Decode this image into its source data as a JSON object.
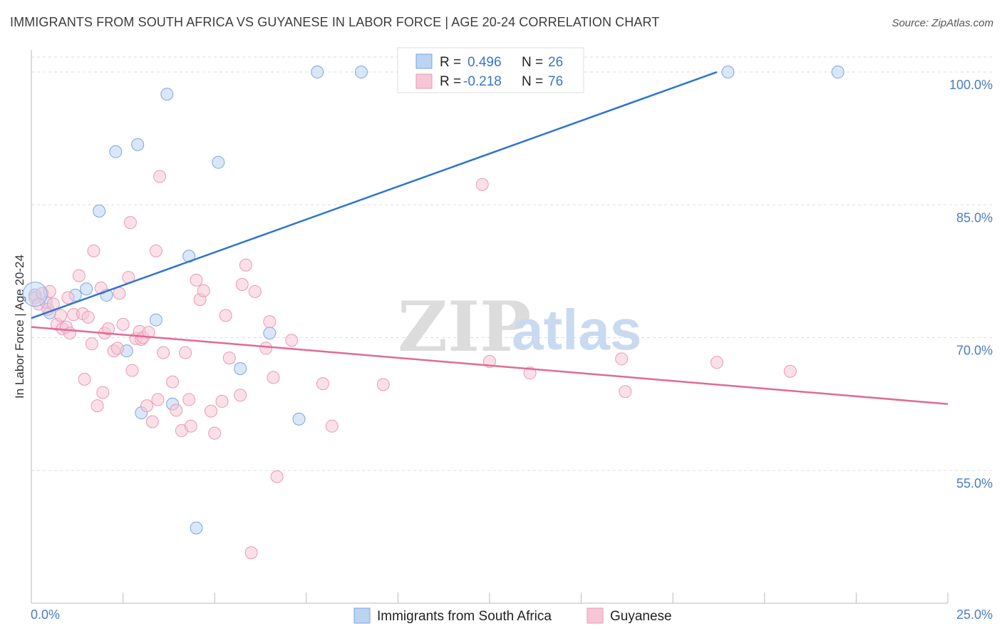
{
  "title": "IMMIGRANTS FROM SOUTH AFRICA VS GUYANESE IN LABOR FORCE | AGE 20-24 CORRELATION CHART",
  "source": "Source: ZipAtlas.com",
  "watermark": {
    "zip": "ZIP",
    "atlas": "atlas"
  },
  "chart_data": {
    "type": "scatter",
    "title": "IMMIGRANTS FROM SOUTH AFRICA VS GUYANESE IN LABOR FORCE | AGE 20-24 CORRELATION CHART",
    "ylabel": "In Labor Force | Age 20-24",
    "xlabel": "",
    "xlim": [
      0,
      25
    ],
    "ylim": [
      40,
      102.5
    ],
    "x_tick_labels": {
      "min": "0.0%",
      "max": "25.0%"
    },
    "y_ticks": [
      {
        "value": 100,
        "label": "100.0%"
      },
      {
        "value": 85,
        "label": "85.0%"
      },
      {
        "value": 70,
        "label": "70.0%"
      },
      {
        "value": 55,
        "label": "55.0%"
      }
    ],
    "grid": "horizontal dashed",
    "legend": {
      "placement": "top-center",
      "r_label": "R =",
      "n_label": "N =",
      "entries": [
        {
          "r": "0.496",
          "n": "26"
        },
        {
          "r": "-0.218",
          "n": "76"
        }
      ]
    },
    "series": [
      {
        "name": "Immigrants from South Africa",
        "color": "#7aa7e0",
        "fill": "#bcd3f2",
        "line_color": "#2f74cf",
        "trend": {
          "x": [
            0,
            18.7
          ],
          "y": [
            72.2,
            100
          ]
        },
        "points": [
          [
            0.1,
            74.8
          ],
          [
            0.4,
            74.0
          ],
          [
            0.5,
            72.8
          ],
          [
            1.2,
            74.8
          ],
          [
            1.5,
            75.5
          ],
          [
            1.85,
            84.3
          ],
          [
            2.05,
            74.8
          ],
          [
            2.3,
            91.0
          ],
          [
            2.6,
            68.5
          ],
          [
            2.9,
            91.8
          ],
          [
            3.0,
            61.5
          ],
          [
            3.4,
            72.0
          ],
          [
            3.7,
            97.5
          ],
          [
            3.85,
            62.5
          ],
          [
            4.3,
            79.2
          ],
          [
            4.5,
            48.5
          ],
          [
            5.1,
            89.8
          ],
          [
            5.7,
            66.5
          ],
          [
            6.5,
            70.5
          ],
          [
            7.3,
            60.8
          ],
          [
            7.8,
            100
          ],
          [
            9.0,
            100
          ],
          [
            11.0,
            100
          ],
          [
            14.5,
            100
          ],
          [
            19.0,
            100
          ],
          [
            22.0,
            100
          ]
        ]
      },
      {
        "name": "Guyanese",
        "color": "#e89ab4",
        "fill": "#f7c6d6",
        "line_color": "#e06a96",
        "trend": {
          "x": [
            0,
            25
          ],
          "y": [
            71.2,
            62.5
          ]
        },
        "points": [
          [
            0.1,
            74.5
          ],
          [
            0.2,
            73.8
          ],
          [
            0.3,
            75.0
          ],
          [
            0.45,
            73.2
          ],
          [
            0.5,
            75.2
          ],
          [
            0.6,
            73.8
          ],
          [
            0.7,
            71.5
          ],
          [
            0.8,
            72.5
          ],
          [
            0.85,
            71.0
          ],
          [
            0.95,
            71.2
          ],
          [
            1.0,
            74.5
          ],
          [
            1.05,
            70.5
          ],
          [
            1.15,
            72.6
          ],
          [
            1.3,
            77.0
          ],
          [
            1.4,
            72.7
          ],
          [
            1.45,
            65.3
          ],
          [
            1.55,
            72.3
          ],
          [
            1.65,
            69.3
          ],
          [
            1.7,
            79.8
          ],
          [
            1.8,
            62.3
          ],
          [
            1.9,
            75.6
          ],
          [
            1.95,
            63.8
          ],
          [
            2.0,
            70.5
          ],
          [
            2.1,
            71.0
          ],
          [
            2.25,
            68.5
          ],
          [
            2.35,
            68.8
          ],
          [
            2.4,
            75.0
          ],
          [
            2.5,
            71.5
          ],
          [
            2.65,
            76.8
          ],
          [
            2.7,
            83.0
          ],
          [
            2.75,
            66.3
          ],
          [
            2.85,
            69.9
          ],
          [
            2.95,
            70.7
          ],
          [
            3.0,
            69.8
          ],
          [
            3.05,
            70.0
          ],
          [
            3.15,
            62.3
          ],
          [
            3.2,
            70.6
          ],
          [
            3.3,
            60.5
          ],
          [
            3.4,
            79.8
          ],
          [
            3.45,
            63.0
          ],
          [
            3.5,
            88.2
          ],
          [
            3.6,
            68.3
          ],
          [
            3.85,
            65.0
          ],
          [
            3.95,
            61.8
          ],
          [
            4.1,
            59.5
          ],
          [
            4.2,
            68.3
          ],
          [
            4.3,
            63.0
          ],
          [
            4.35,
            60.0
          ],
          [
            4.5,
            76.5
          ],
          [
            4.6,
            74.3
          ],
          [
            4.7,
            75.3
          ],
          [
            4.9,
            61.7
          ],
          [
            5.0,
            59.2
          ],
          [
            5.2,
            62.8
          ],
          [
            5.3,
            72.5
          ],
          [
            5.4,
            67.7
          ],
          [
            5.7,
            63.5
          ],
          [
            5.75,
            76.0
          ],
          [
            5.85,
            78.2
          ],
          [
            6.0,
            45.7
          ],
          [
            6.1,
            75.2
          ],
          [
            6.4,
            68.8
          ],
          [
            6.5,
            71.8
          ],
          [
            6.6,
            65.5
          ],
          [
            6.7,
            54.3
          ],
          [
            7.1,
            69.7
          ],
          [
            7.95,
            64.8
          ],
          [
            8.2,
            60.0
          ],
          [
            9.6,
            64.7
          ],
          [
            12.3,
            87.3
          ],
          [
            12.5,
            67.3
          ],
          [
            13.6,
            66.0
          ],
          [
            16.1,
            67.6
          ],
          [
            16.2,
            63.9
          ],
          [
            18.7,
            67.2
          ],
          [
            20.7,
            66.2
          ]
        ]
      }
    ]
  }
}
